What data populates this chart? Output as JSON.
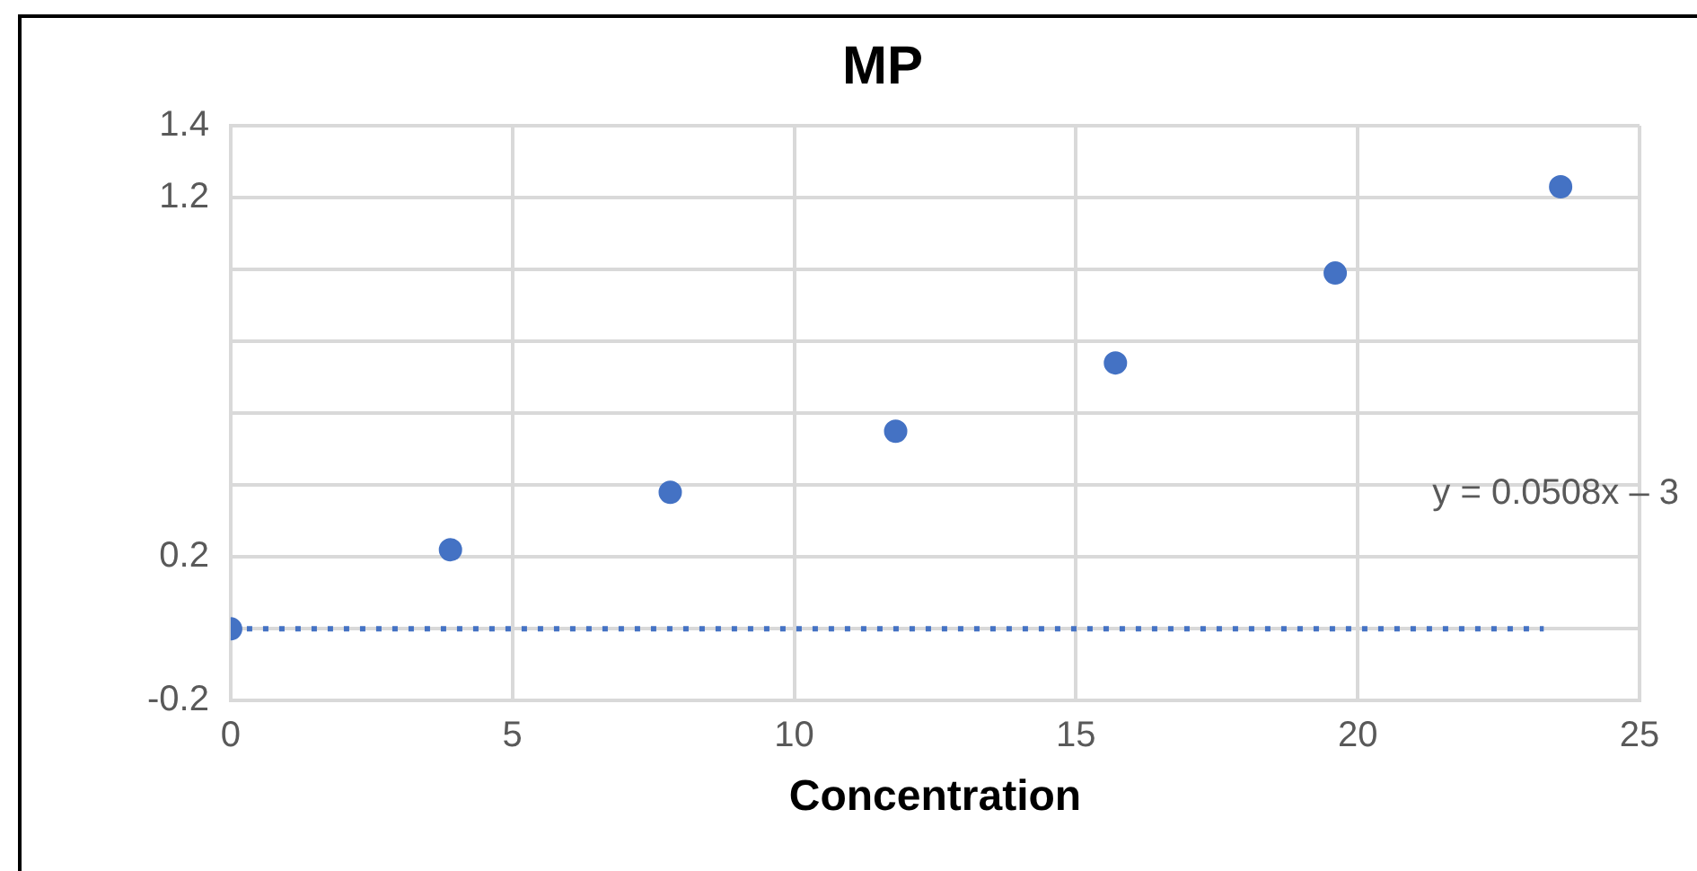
{
  "chart_data": {
    "type": "scatter",
    "title": "MP",
    "xlabel": "Concentration",
    "x": [
      0,
      3.9,
      7.8,
      11.8,
      15.7,
      19.6,
      23.6
    ],
    "series": [
      {
        "color": "#4472c4",
        "values": [
          0,
          0.22,
          0.38,
          0.55,
          0.74,
          0.99,
          1.23
        ]
      },
      {
        "type": "line",
        "color": "#4472c4",
        "line_style": "dotted",
        "marker": "none",
        "x": [
          0,
          23.3
        ],
        "values": [
          0,
          0
        ]
      }
    ],
    "xlim": [
      0,
      25
    ],
    "xticks": [
      0,
      5,
      10,
      15,
      20,
      25
    ],
    "ylim": [
      -0.2,
      1.4
    ],
    "yticks": [
      -0.2,
      {
        "value": 0,
        "label": null
      },
      0.2,
      {
        "value": 0.4,
        "label": null
      },
      {
        "value": 0.6,
        "label": null
      },
      {
        "value": 0.8,
        "label": null
      },
      {
        "value": 1,
        "label": null
      },
      1.2,
      1.4
    ],
    "grid": true,
    "legend": false,
    "marker": "circle",
    "annotations": [
      "y = 0.0508x – 3"
    ]
  }
}
